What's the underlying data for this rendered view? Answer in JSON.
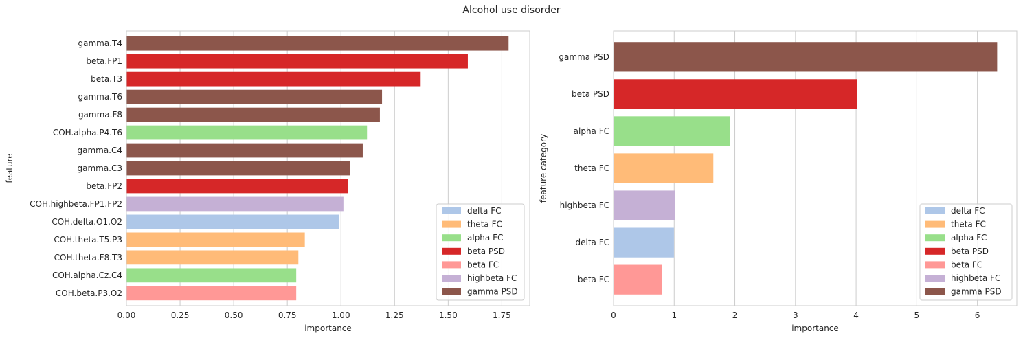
{
  "figure_title": "Alcohol use disorder",
  "chart_data": [
    {
      "type": "bar",
      "orientation": "horizontal",
      "xlabel": "importance",
      "ylabel": "feature",
      "xlim": [
        0,
        1.88
      ],
      "xticks": [
        "0.00",
        "0.25",
        "0.50",
        "0.75",
        "1.00",
        "1.25",
        "1.50",
        "1.75"
      ],
      "xtick_values": [
        0,
        0.25,
        0.5,
        0.75,
        1.0,
        1.25,
        1.5,
        1.75
      ],
      "grid": "x",
      "legend_position": "lower-right",
      "categories": [
        "gamma.T4",
        "beta.FP1",
        "beta.T3",
        "gamma.T6",
        "gamma.F8",
        "COH.alpha.P4.T6",
        "gamma.C4",
        "gamma.C3",
        "beta.FP2",
        "COH.highbeta.FP1.FP2",
        "COH.delta.O1.O2",
        "COH.theta.T5.P3",
        "COH.theta.F8.T3",
        "COH.alpha.Cz.C4",
        "COH.beta.P3.O2"
      ],
      "values": [
        1.78,
        1.59,
        1.37,
        1.19,
        1.18,
        1.12,
        1.1,
        1.04,
        1.03,
        1.01,
        0.99,
        0.83,
        0.8,
        0.79,
        0.79
      ],
      "groups": [
        "gamma PSD",
        "beta PSD",
        "beta PSD",
        "gamma PSD",
        "gamma PSD",
        "alpha FC",
        "gamma PSD",
        "gamma PSD",
        "beta PSD",
        "highbeta FC",
        "delta FC",
        "theta FC",
        "theta FC",
        "alpha FC",
        "beta FC"
      ]
    },
    {
      "type": "bar",
      "orientation": "horizontal",
      "xlabel": "importance",
      "ylabel": "feature category",
      "xlim": [
        0,
        6.65
      ],
      "xticks": [
        "0",
        "1",
        "2",
        "3",
        "4",
        "5",
        "6"
      ],
      "xtick_values": [
        0,
        1,
        2,
        3,
        4,
        5,
        6
      ],
      "grid": "x",
      "legend_position": "lower-right",
      "categories": [
        "gamma PSD",
        "beta PSD",
        "alpha FC",
        "theta FC",
        "highbeta FC",
        "delta FC",
        "beta FC"
      ],
      "values": [
        6.32,
        4.01,
        1.92,
        1.64,
        1.01,
        0.99,
        0.79
      ],
      "groups": [
        "gamma PSD",
        "beta PSD",
        "alpha FC",
        "theta FC",
        "highbeta FC",
        "delta FC",
        "beta FC"
      ]
    }
  ],
  "legend": [
    {
      "label": "delta FC",
      "color": "#aec7e8"
    },
    {
      "label": "theta FC",
      "color": "#ffbb78"
    },
    {
      "label": "alpha FC",
      "color": "#98df8a"
    },
    {
      "label": "beta PSD",
      "color": "#d62728"
    },
    {
      "label": "beta FC",
      "color": "#ff9896"
    },
    {
      "label": "highbeta FC",
      "color": "#c5b0d5"
    },
    {
      "label": "gamma PSD",
      "color": "#8c564b"
    }
  ]
}
